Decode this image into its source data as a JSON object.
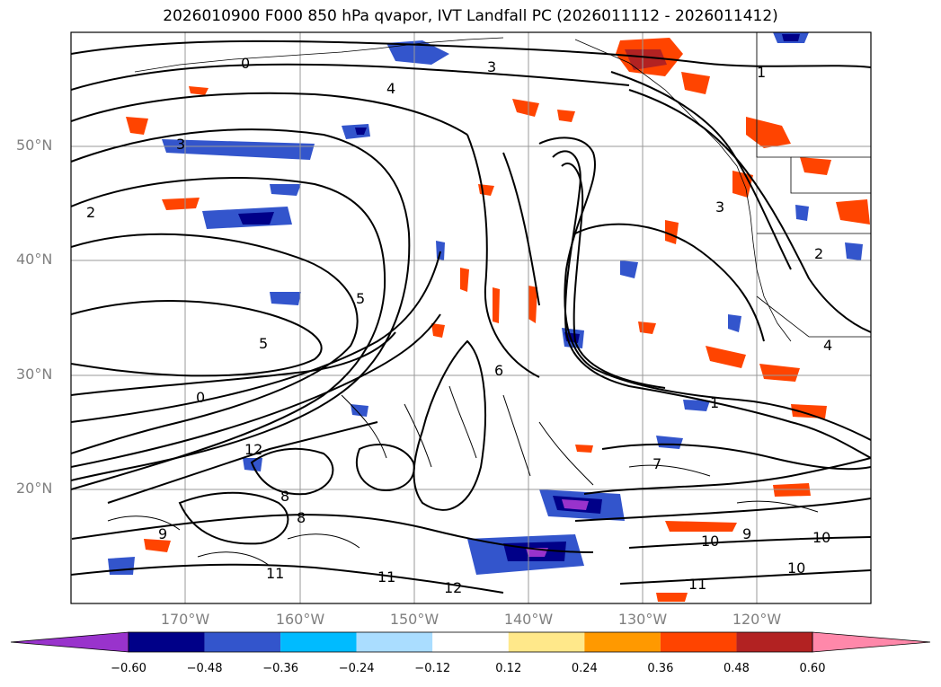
{
  "title": "2026010900 F000 850 hPa qvapor, IVT Landfall PC (2026011112 - 2026011412)",
  "lat_labels": [
    "50°N",
    "40°N",
    "30°N",
    "20°N"
  ],
  "lon_labels": [
    "170°W",
    "160°W",
    "150°W",
    "140°W",
    "130°W",
    "120°W"
  ],
  "contour_labels": [
    "0",
    "1",
    "2",
    "3",
    "4",
    "5",
    "6",
    "7",
    "8",
    "9",
    "10",
    "11",
    "12"
  ],
  "colorbar": {
    "colors": [
      "#9933cc",
      "#000088",
      "#3355cc",
      "#00bbff",
      "#aaddff",
      "#ffffff",
      "#ffe88a",
      "#ff9900",
      "#ff4400",
      "#b22222",
      "#ff88aa"
    ],
    "tick_labels": [
      "−0.60",
      "−0.48",
      "−0.36",
      "−0.24",
      "−0.12",
      "0.12",
      "0.24",
      "0.36",
      "0.48",
      "0.60"
    ]
  }
}
